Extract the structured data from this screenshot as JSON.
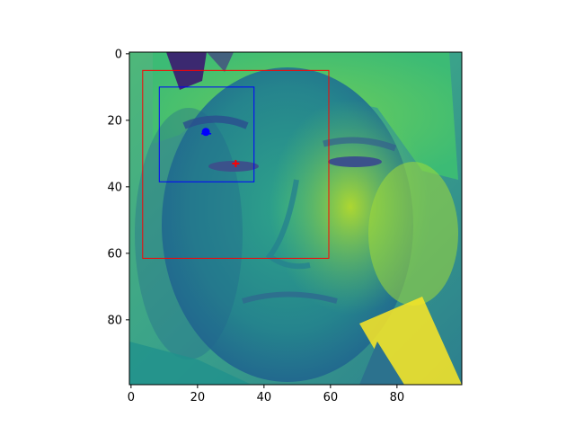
{
  "figure": {
    "image_description": "viridis-colormapped grayscale photo of a young man's face",
    "image_grid": "100x100 pixels",
    "x_ticks": [
      {
        "value": 0,
        "label": "0"
      },
      {
        "value": 20,
        "label": "20"
      },
      {
        "value": 40,
        "label": "40"
      },
      {
        "value": 60,
        "label": "60"
      },
      {
        "value": 80,
        "label": "80"
      }
    ],
    "y_ticks": [
      {
        "value": 0,
        "label": "0"
      },
      {
        "value": 20,
        "label": "20"
      },
      {
        "value": 40,
        "label": "40"
      },
      {
        "value": 60,
        "label": "60"
      },
      {
        "value": 80,
        "label": "80"
      }
    ],
    "extent": {
      "x": [
        -0.5,
        99.5
      ],
      "y": [
        -0.5,
        99.5
      ]
    },
    "colormap": "viridis"
  },
  "overlays": {
    "face_box": {
      "x0": 3.5,
      "y0": 5,
      "x1": 59.5,
      "y1": 61.5,
      "color": "#ff0000"
    },
    "eye_box": {
      "x0": 8.5,
      "y0": 10,
      "x1": 37,
      "y1": 38.5,
      "color": "#0000ff"
    },
    "points": [
      {
        "x": 22.5,
        "y": 23.5,
        "color": "#0000ff",
        "shape": "filled-circle"
      },
      {
        "x": 31.5,
        "y": 33,
        "color": "#ff0000",
        "shape": "plus"
      }
    ]
  }
}
